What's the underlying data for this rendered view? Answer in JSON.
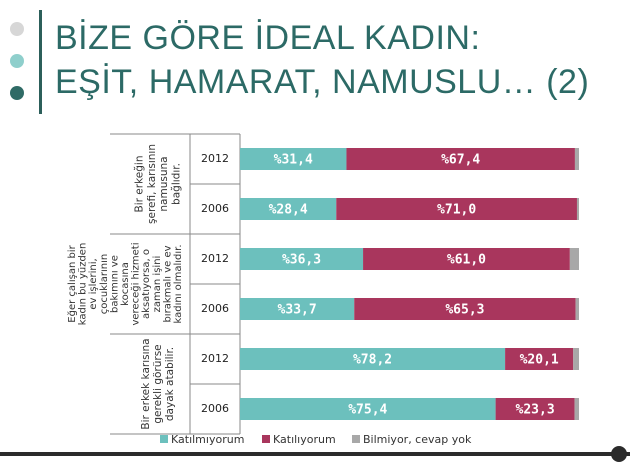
{
  "title": {
    "line1": "BİZE GÖRE İDEAL KADIN:",
    "line2": "EŞİT, HAMARAT, NAMUSLU… (2)"
  },
  "colors": {
    "katilmiyorum": "#6cc0bd",
    "katiliyorum": "#a9365d",
    "bilmiyor": "#a8a8a8",
    "title": "#2c6a66"
  },
  "chart_data": {
    "type": "bar",
    "orientation": "horizontal",
    "stacked": true,
    "groups": [
      {
        "question": [
          "Bir erkeğin",
          "şerefi, karısının",
          "namusuna",
          "bağlıdır."
        ],
        "categories": [
          "2012",
          "2006"
        ]
      },
      {
        "question": [
          "Eğer çalışan bir",
          "kadın bu yüzden",
          "ev işlerini,",
          "çocuklarının",
          "bakımını ve",
          "kocasına",
          "vereceği hizmeti",
          "aksatıyorsa, o",
          "zaman işini",
          "bırakmalı ve ev",
          "kadını olmalıdır."
        ],
        "categories": [
          "2012",
          "2006"
        ]
      },
      {
        "question": [
          "Bir erkek karısına",
          "gerekli görürse",
          "dayak atabilir."
        ],
        "categories": [
          "2012",
          "2006"
        ]
      }
    ],
    "series": [
      {
        "name": "Katılmıyorum",
        "values": [
          31.4,
          28.4,
          36.3,
          33.7,
          78.2,
          75.4
        ],
        "labels": [
          "%31,4",
          "%28,4",
          "%36,3",
          "%33,7",
          "%78,2",
          "%75,4"
        ]
      },
      {
        "name": "Katılıyorum",
        "values": [
          67.4,
          71.0,
          61.0,
          65.3,
          20.1,
          23.3
        ],
        "labels": [
          "%67,4",
          "%71,0",
          "%61,0",
          "%65,3",
          "%20,1",
          "%23,3"
        ]
      },
      {
        "name": "Bilmiyor, cevap yok",
        "values": [
          1.2,
          0.6,
          2.7,
          1.0,
          1.7,
          1.3
        ]
      }
    ],
    "xlim": [
      0,
      100
    ],
    "legend_position": "bottom"
  }
}
